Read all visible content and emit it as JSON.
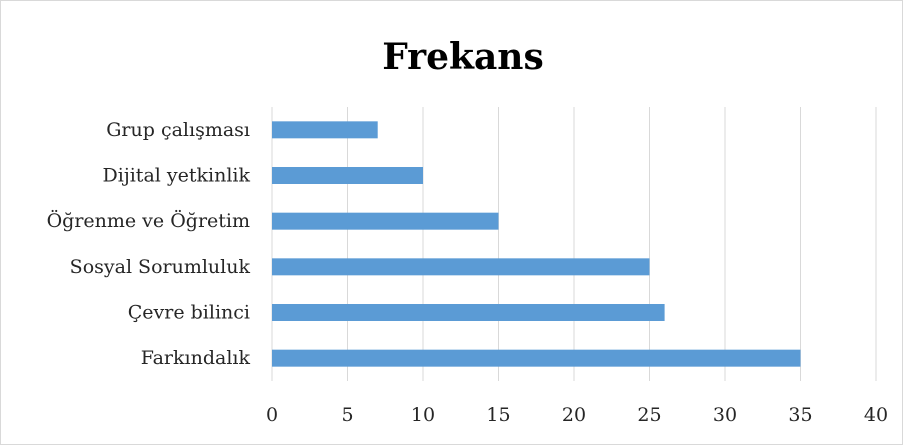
{
  "chart_data": {
    "type": "bar",
    "orientation": "horizontal",
    "title": "Frekans",
    "categories": [
      "Grup çalışması",
      "Dijital yetkinlik",
      "Öğrenme ve Öğretim",
      "Sosyal Sorumluluk",
      "Çevre bilinci",
      "Farkındalık"
    ],
    "values": [
      7,
      10,
      15,
      25,
      26,
      35
    ],
    "xlim": [
      0,
      40
    ],
    "xticks": [
      0,
      5,
      10,
      15,
      20,
      25,
      30,
      35,
      40
    ],
    "xlabel": "",
    "ylabel": "",
    "grid": "vertical",
    "legend": "none",
    "bar_color": "#5b9bd5",
    "grid_color": "#d9d9d9"
  }
}
